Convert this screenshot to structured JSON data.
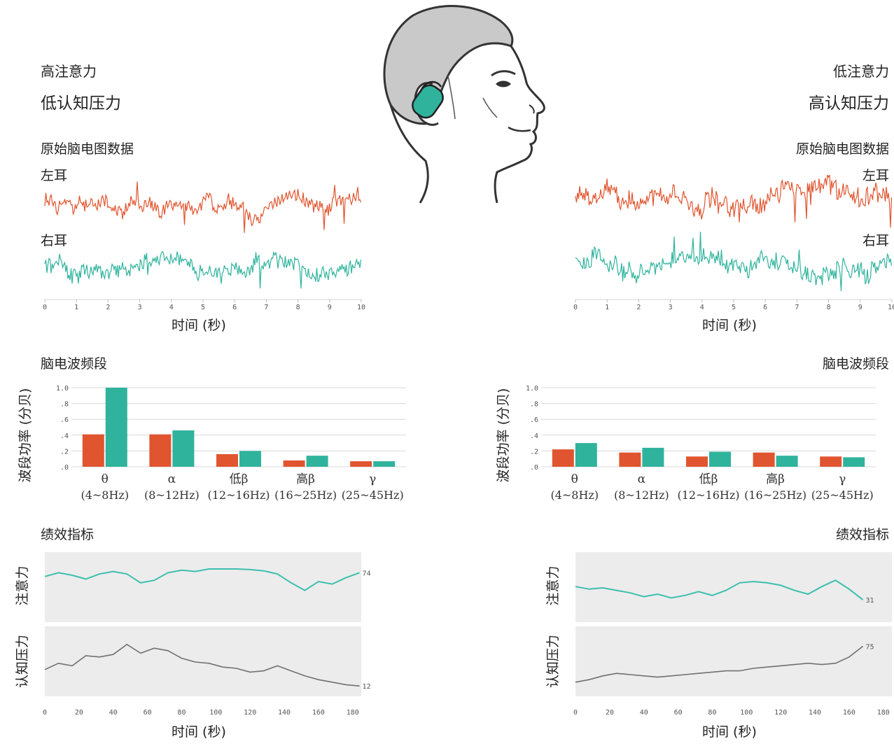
{
  "left": {
    "attention_state": "高注意力",
    "stress_state": "低认知压力",
    "raw_title": "原始脑电图数据",
    "left_ear": "左耳",
    "right_ear": "右耳",
    "band_title": "脑电波频段",
    "perf_title": "绩效指标",
    "attention_end": "74",
    "stress_end": "12"
  },
  "right": {
    "attention_state": "低注意力",
    "stress_state": "高认知压力",
    "raw_title": "原始脑电图数据",
    "left_ear": "左耳",
    "right_ear": "右耳",
    "band_title": "脑电波频段",
    "perf_title": "绩效指标",
    "attention_end": "31",
    "stress_end": "75"
  },
  "labels": {
    "time_axis": "时间 (秒)",
    "power_axis": "波段功率 (分贝)",
    "attention": "注意力",
    "stress": "认知压力"
  },
  "colors": {
    "left_ear": "#e0552f",
    "right_ear": "#2fb39d",
    "attention_line": "#3dbfae",
    "stress_line": "#707070",
    "panel_bg": "#ececec"
  },
  "illustration": "head-with-earbud-icon",
  "chart_data": [
    {
      "type": "line",
      "panel": "left-raw-eeg",
      "xlim": [
        0,
        10
      ],
      "x_ticks": [
        "0",
        "1",
        "2",
        "3",
        "4",
        "5",
        "6",
        "7",
        "8",
        "9",
        "10"
      ],
      "series": [
        {
          "name": "左耳"
        },
        {
          "name": "右耳"
        }
      ]
    },
    {
      "type": "line",
      "panel": "right-raw-eeg",
      "xlim": [
        0,
        10
      ],
      "x_ticks": [
        "0",
        "1",
        "2",
        "3",
        "4",
        "5",
        "6",
        "7",
        "8",
        "9",
        "10"
      ],
      "series": [
        {
          "name": "左耳"
        },
        {
          "name": "右耳"
        }
      ]
    },
    {
      "type": "bar",
      "panel": "left-bands",
      "categories": [
        "θ",
        "α",
        "低β",
        "高β",
        "γ"
      ],
      "ranges": [
        "(4~8Hz)",
        "(8~12Hz)",
        "(12~16Hz)",
        "(16~25Hz)",
        "(25~45Hz)"
      ],
      "ylim": [
        0,
        1.0
      ],
      "y_ticks": [
        "1.0",
        ".8",
        ".6",
        ".4",
        ".2",
        ".0"
      ],
      "series": [
        {
          "name": "左耳",
          "values": [
            0.41,
            0.41,
            0.16,
            0.08,
            0.07
          ]
        },
        {
          "name": "右耳",
          "values": [
            1.0,
            0.46,
            0.2,
            0.14,
            0.07
          ]
        }
      ]
    },
    {
      "type": "bar",
      "panel": "right-bands",
      "categories": [
        "θ",
        "α",
        "低β",
        "高β",
        "γ"
      ],
      "ranges": [
        "(4~8Hz)",
        "(8~12Hz)",
        "(12~16Hz)",
        "(16~25Hz)",
        "(25~45Hz)"
      ],
      "ylim": [
        0,
        1.0
      ],
      "y_ticks": [
        "1.0",
        ".8",
        ".6",
        ".4",
        ".2",
        ".0"
      ],
      "series": [
        {
          "name": "左耳",
          "values": [
            0.22,
            0.18,
            0.13,
            0.18,
            0.13
          ]
        },
        {
          "name": "右耳",
          "values": [
            0.3,
            0.24,
            0.19,
            0.14,
            0.12
          ]
        }
      ]
    },
    {
      "type": "line",
      "panel": "left-performance",
      "xlim": [
        0,
        185
      ],
      "x_ticks": [
        "0",
        "20",
        "40",
        "60",
        "80",
        "100",
        "120",
        "140",
        "160",
        "180"
      ],
      "series": [
        {
          "name": "注意力",
          "x": [
            0,
            8,
            16,
            24,
            32,
            40,
            48,
            56,
            64,
            72,
            80,
            88,
            96,
            104,
            112,
            120,
            128,
            136,
            144,
            152,
            160,
            168,
            176,
            184
          ],
          "values": [
            68,
            74,
            70,
            64,
            72,
            76,
            72,
            58,
            62,
            74,
            78,
            76,
            80,
            80,
            80,
            79,
            77,
            72,
            58,
            46,
            60,
            56,
            66,
            74
          ]
        },
        {
          "name": "认知压力",
          "x": [
            0,
            8,
            16,
            24,
            32,
            40,
            48,
            56,
            64,
            72,
            80,
            88,
            96,
            104,
            112,
            120,
            128,
            136,
            144,
            152,
            160,
            168,
            176,
            184
          ],
          "values": [
            38,
            48,
            44,
            60,
            58,
            62,
            78,
            64,
            72,
            68,
            56,
            50,
            48,
            42,
            40,
            34,
            36,
            44,
            36,
            28,
            22,
            18,
            14,
            12
          ]
        }
      ]
    },
    {
      "type": "line",
      "panel": "right-performance",
      "xlim": [
        0,
        185
      ],
      "x_ticks": [
        "0",
        "20",
        "40",
        "60",
        "80",
        "100",
        "120",
        "140",
        "160",
        "180"
      ],
      "series": [
        {
          "name": "注意力",
          "x": [
            0,
            8,
            16,
            24,
            32,
            40,
            48,
            56,
            64,
            72,
            80,
            88,
            96,
            104,
            112,
            120,
            128,
            136,
            144,
            152,
            160,
            168
          ],
          "values": [
            52,
            48,
            50,
            46,
            42,
            36,
            40,
            34,
            38,
            44,
            38,
            46,
            58,
            60,
            58,
            54,
            46,
            40,
            52,
            62,
            48,
            31
          ]
        },
        {
          "name": "认知压力",
          "x": [
            0,
            8,
            16,
            24,
            32,
            40,
            48,
            56,
            64,
            72,
            80,
            88,
            96,
            104,
            112,
            120,
            128,
            136,
            144,
            152,
            160,
            168
          ],
          "values": [
            18,
            22,
            28,
            32,
            30,
            28,
            26,
            28,
            30,
            32,
            34,
            36,
            36,
            40,
            42,
            44,
            46,
            48,
            46,
            48,
            58,
            75
          ]
        }
      ]
    }
  ]
}
